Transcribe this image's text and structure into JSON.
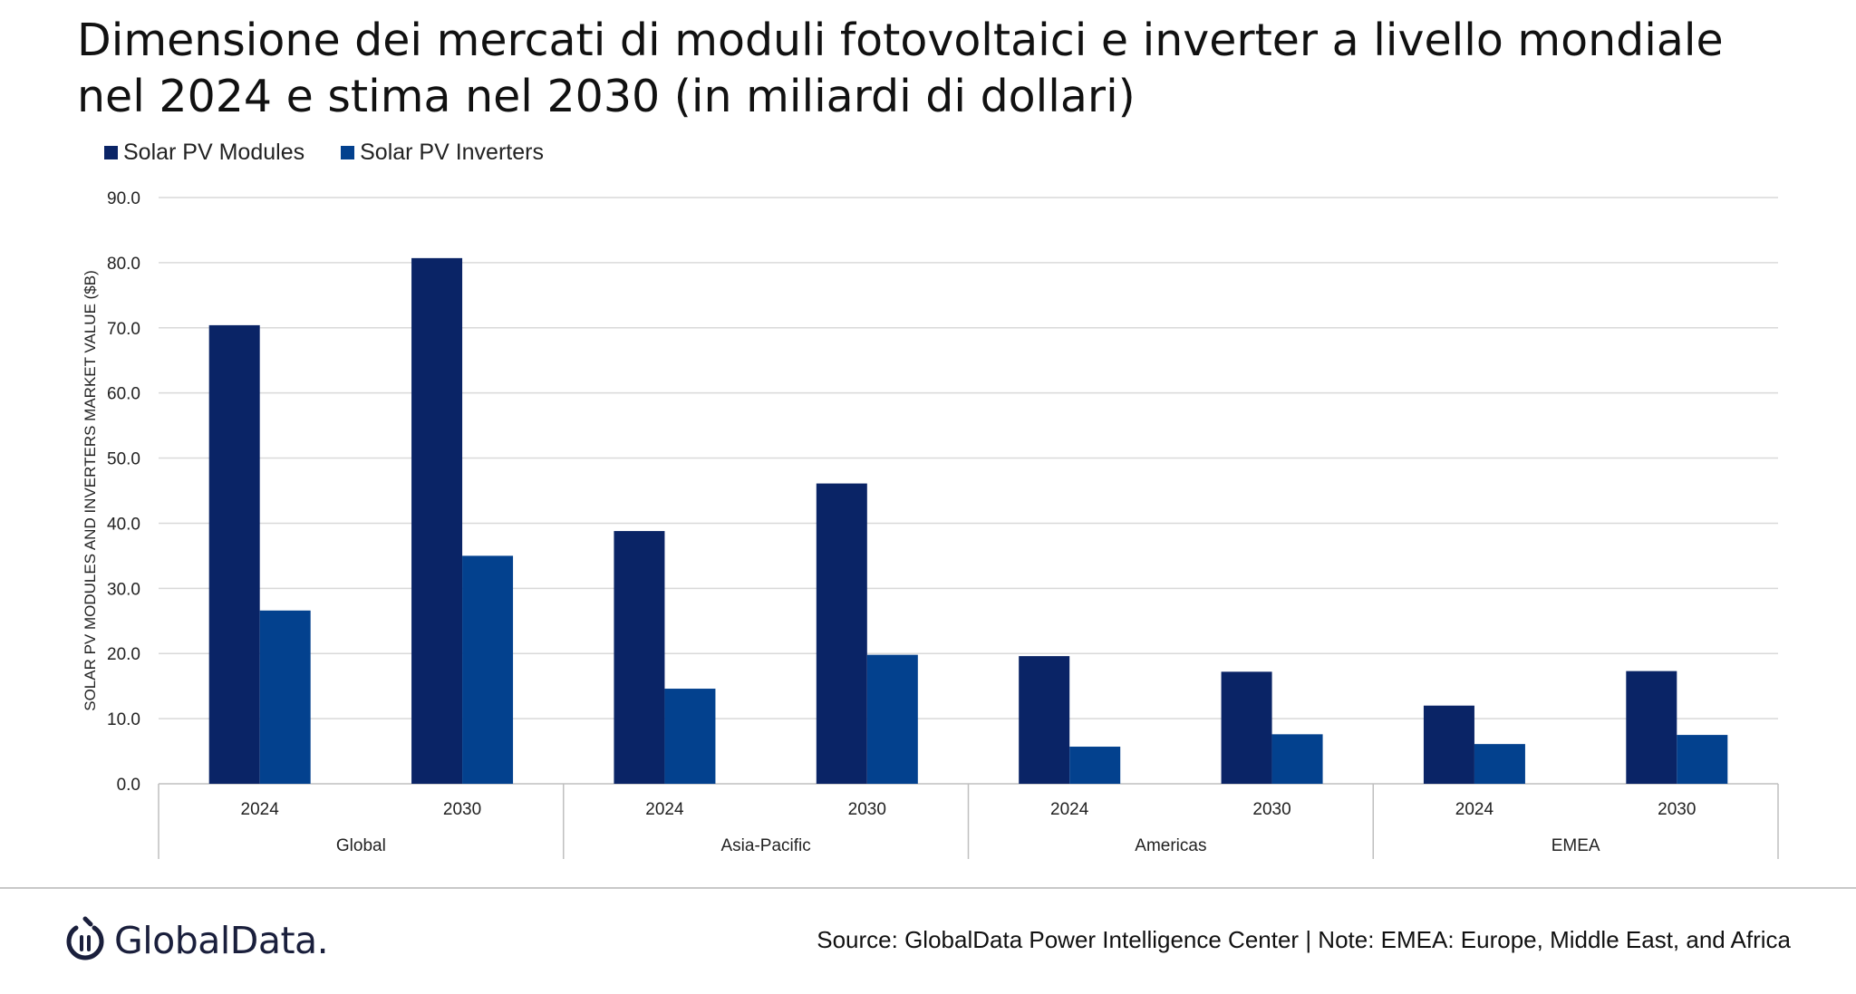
{
  "title_lines": [
    "Dimensione dei mercati di moduli fotovoltaici e inverter a livello mondiale",
    "nel 2024 e stima nel 2030 (in miliardi di dollari)"
  ],
  "colors": {
    "modules": "#0a2466",
    "inverters": "#03418e",
    "grid": "#d9d9d9",
    "axis": "#bfbfbf"
  },
  "chart_data": {
    "type": "bar",
    "ylabel": "SOLAR PV MODULES AND INVERTERS MARKET VALUE ($B)",
    "ylim": [
      0,
      90
    ],
    "yticks": [
      "0.0",
      "10.0",
      "20.0",
      "30.0",
      "40.0",
      "50.0",
      "60.0",
      "70.0",
      "80.0",
      "90.0"
    ],
    "grid": true,
    "legend_position": "top-left",
    "groups": [
      "Global",
      "Asia-Pacific",
      "Americas",
      "EMEA"
    ],
    "categories": [
      "2024",
      "2030",
      "2024",
      "2030",
      "2024",
      "2030",
      "2024",
      "2030"
    ],
    "series": [
      {
        "name": "Solar PV Modules",
        "values": [
          70.4,
          80.7,
          38.8,
          46.1,
          19.6,
          17.2,
          12.0,
          17.3
        ]
      },
      {
        "name": "Solar PV Inverters",
        "values": [
          26.6,
          35.0,
          14.6,
          19.8,
          5.7,
          7.6,
          6.1,
          7.5
        ]
      }
    ]
  },
  "footer": {
    "logo_text": "GlobalData.",
    "logo_icon": "globaldata-logo-icon",
    "source": "Source: GlobalData Power Intelligence Center | Note: EMEA: Europe, Middle East, and Africa"
  }
}
